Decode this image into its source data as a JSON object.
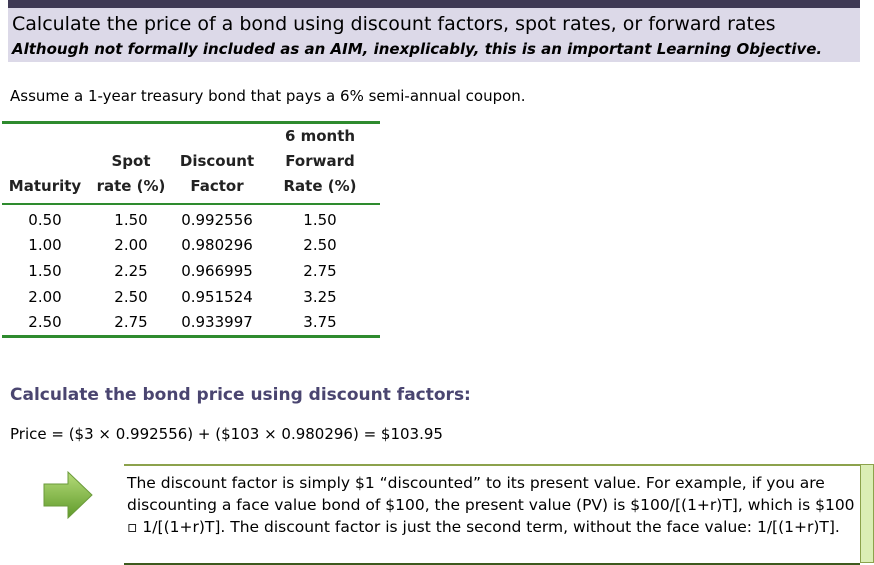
{
  "header": {
    "title": "Calculate the price of a bond using discount factors, spot rates, or forward rates",
    "subtitle": "Although not formally included as an AIM, inexplicably, this is an important Learning Objective."
  },
  "intro": "Assume a 1-year treasury bond that pays a 6% semi-annual coupon.",
  "table": {
    "headers": [
      [
        "Maturity"
      ],
      [
        "Spot",
        "rate (%)"
      ],
      [
        "Discount",
        "Factor"
      ],
      [
        "6 month",
        "Forward",
        "Rate (%)"
      ]
    ],
    "rows": [
      [
        "0.50",
        "1.50",
        "0.992556",
        "1.50"
      ],
      [
        "1.00",
        "2.00",
        "0.980296",
        "2.50"
      ],
      [
        "1.50",
        "2.25",
        "0.966995",
        "2.75"
      ],
      [
        "2.00",
        "2.50",
        "0.951524",
        "3.25"
      ],
      [
        "2.50",
        "2.75",
        "0.933997",
        "3.75"
      ]
    ]
  },
  "section_title": "Calculate the bond price using discount factors:",
  "formula": "Price = ($3 × 0.992556) + ($103 × 0.980296) = $103.95",
  "note": "The discount factor is simply $1 “discounted” to its present value. For example, if you are discounting a face value bond of $100, the present value (PV) is $100/[(1+r)T], which is $100 ▫ 1/[(1+r)T]. The discount factor is just the second term, without the face value: 1/[(1+r)T]."
}
